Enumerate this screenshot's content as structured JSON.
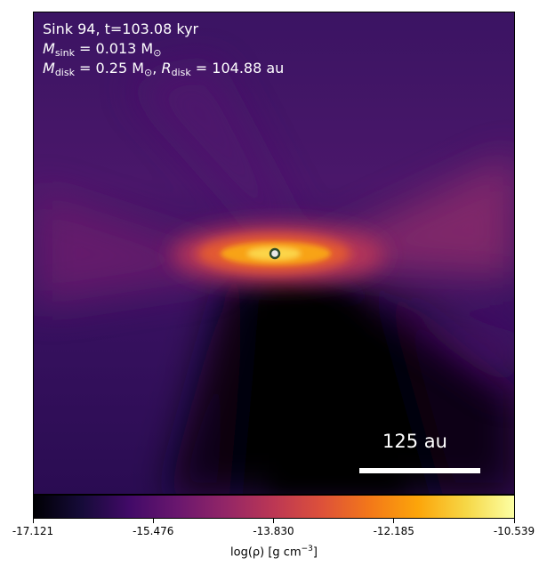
{
  "header": {
    "line1": "Sink 94, t=103.08 kyr",
    "msink_symbol": "M",
    "msink_sub": "sink",
    "msink_value": " = 0.013 M",
    "msink_unit_sub": "⊙",
    "mdisk_symbol": "M",
    "mdisk_sub": "disk",
    "mdisk_value": " = 0.25 M",
    "mdisk_unit_sub": "⊙",
    "rdisk_sep": ", ",
    "rdisk_symbol": "R",
    "rdisk_sub": "disk",
    "rdisk_value": " = 104.88 au"
  },
  "scale_bar": {
    "label": "125 au"
  },
  "colorbar": {
    "ticks": [
      "-17.121",
      "-15.476",
      "-13.830",
      "-12.185",
      "-10.539"
    ],
    "label_main": "log(ρ) [g cm",
    "label_sup": "−3",
    "label_end": "]",
    "colormap": "inferno"
  },
  "sink_marker": {
    "fill": "#e8e8e8",
    "stroke": "#2e4a2a"
  }
}
